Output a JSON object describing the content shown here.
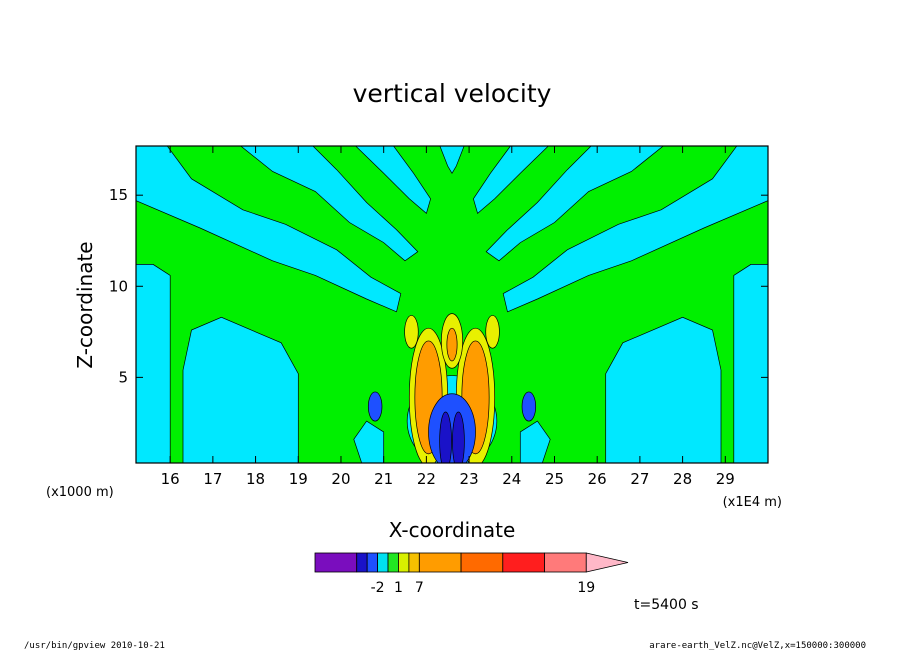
{
  "chart_data": {
    "type": "heatmap",
    "title": "vertical velocity",
    "xlabel": "X-coordinate",
    "ylabel": "Z-coordinate",
    "x_unit_left": "(x1000 m)",
    "x_unit_right": "(x1E4 m)",
    "xlim": [
      15.2,
      30.0
    ],
    "ylim": [
      0.3,
      17.7
    ],
    "x_ticks": [
      16,
      17,
      18,
      19,
      20,
      21,
      22,
      23,
      24,
      25,
      26,
      27,
      28,
      29
    ],
    "y_ticks": [
      5,
      10,
      15
    ],
    "center_x": 22.6,
    "colorbar": {
      "colors": [
        "#7a0dbe",
        "#1a12c8",
        "#1e50ff",
        "#00e0f0",
        "#22e622",
        "#d8f000",
        "#f5c000",
        "#ff9c00",
        "#ff6a00",
        "#ff1e1e",
        "#ff7a7a",
        "#ffb8c8"
      ],
      "weights": [
        2,
        0.5,
        0.5,
        0.5,
        0.5,
        0.5,
        0.5,
        2,
        2,
        2,
        2,
        2
      ],
      "tick_labels": [
        "-2",
        "1",
        "7",
        "19"
      ],
      "tick_boundaries": [
        3,
        5,
        7,
        11
      ]
    },
    "time_label": "t=5400 s"
  },
  "footer": {
    "left": "/usr/bin/gpview   2010-10-21",
    "right": "arare-earth_VelZ.nc@VelZ,x=150000:300000"
  },
  "colors": {
    "cyan": "#00e8ff",
    "green": "#00f000",
    "blue": "#1e50ff",
    "dark_blue": "#1a12c8",
    "yellow": "#e8f000",
    "orange": "#ff9c00",
    "contour": "#000000"
  }
}
